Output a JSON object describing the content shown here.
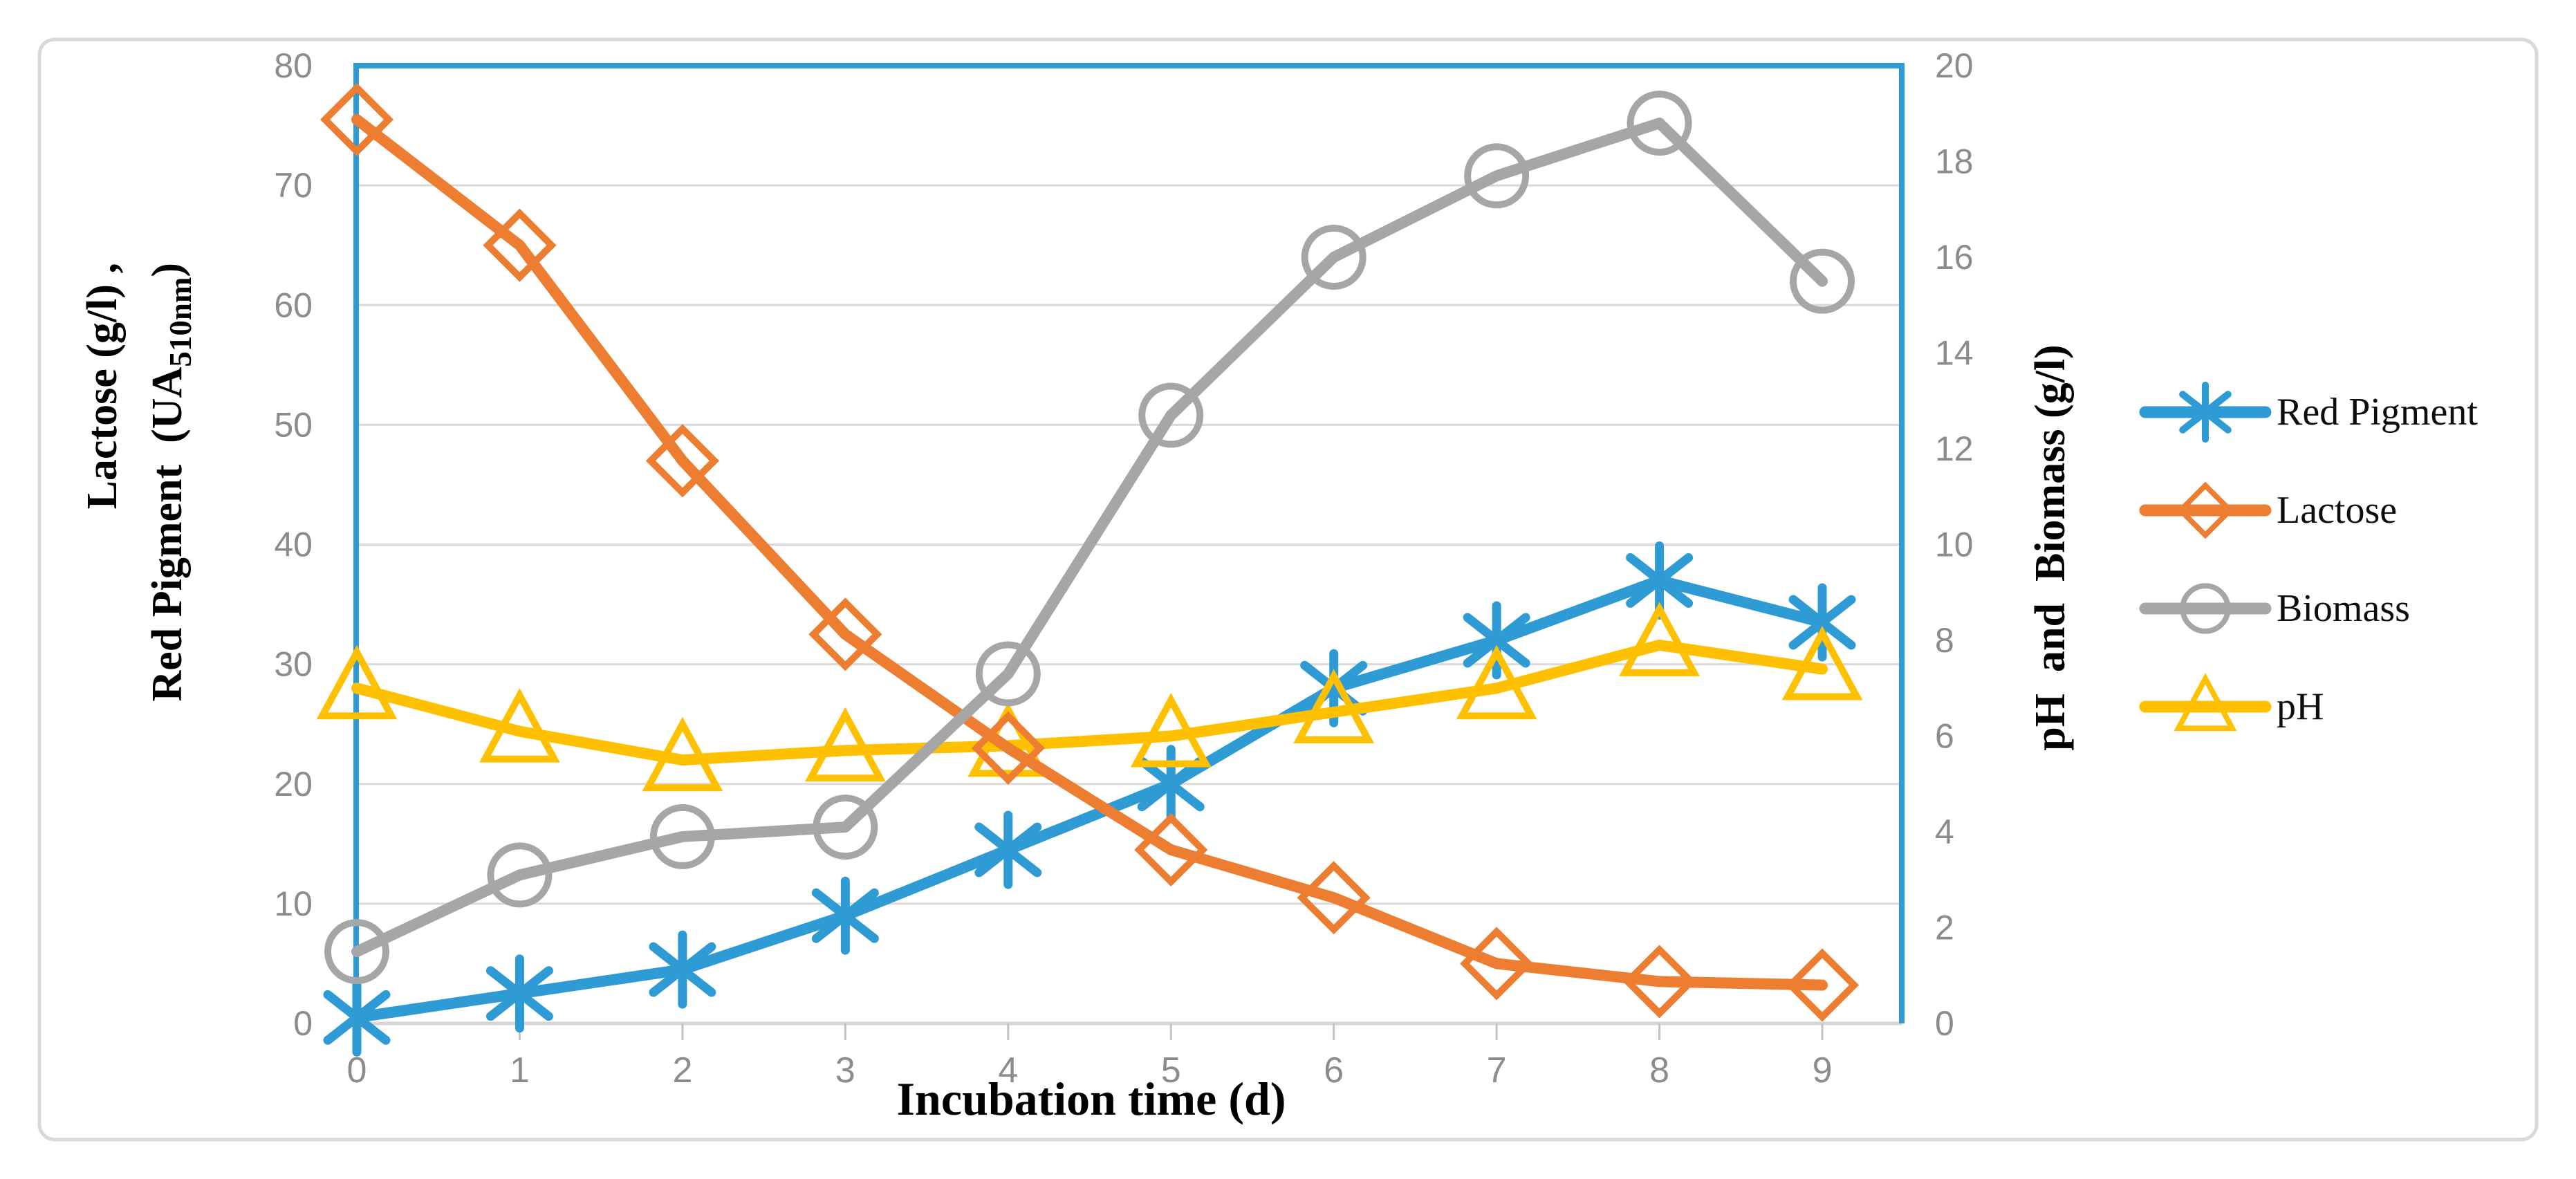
{
  "chart_data": {
    "type": "line",
    "x": [
      0,
      1,
      2,
      3,
      4,
      5,
      6,
      7,
      8,
      9
    ],
    "xlabel": "Incubation time (d)",
    "left_axis": {
      "title_line1": "Lactose (g/l) ,",
      "title_line2_main": "Red Pigment  (UA",
      "title_line2_subscript": "510nm",
      "title_line2_close": ")",
      "min": 0,
      "max": 80,
      "tick_step": 10,
      "ticks": [
        80,
        70,
        60,
        50,
        40,
        30,
        20,
        10,
        0
      ]
    },
    "right_axis": {
      "title": "pH  and  Biomass (g/l)",
      "min": 0,
      "max": 20,
      "tick_step": 2,
      "ticks": [
        20,
        18,
        16,
        14,
        12,
        10,
        8,
        6,
        4,
        2,
        0
      ]
    },
    "grid": true,
    "legend_position": "right",
    "series": [
      {
        "name": "Red Pigment",
        "axis": "left",
        "marker": "star",
        "color": "#2E9BD5",
        "values": [
          0.5,
          2.5,
          4.5,
          9,
          14.5,
          20,
          28,
          32,
          37,
          33.5
        ]
      },
      {
        "name": "Lactose",
        "axis": "left",
        "marker": "diamond",
        "color": "#ED7D31",
        "values": [
          75.5,
          65,
          47,
          32.5,
          23,
          14.5,
          10.5,
          5,
          3.5,
          3.2
        ]
      },
      {
        "name": "Biomass",
        "axis": "right",
        "marker": "circle",
        "color": "#A6A6A6",
        "values": [
          1.5,
          3.1,
          3.9,
          4.1,
          7.3,
          12.7,
          16,
          17.7,
          18.8,
          15.5
        ]
      },
      {
        "name": "pH",
        "axis": "right",
        "marker": "triangle",
        "color": "#FFC000",
        "values": [
          7.0,
          6.1,
          5.5,
          5.7,
          5.8,
          6.0,
          6.5,
          7.0,
          7.9,
          7.4
        ]
      }
    ],
    "colors": {
      "gridline": "#D9D9D9",
      "outer_border": "#D9D9D9",
      "plot_border": "#2E9BD5",
      "bottom_axis": "#D6D6D6",
      "tick_mark": "#C2C2C2",
      "axis_text": "#8C8C8C",
      "title_text": "#000000",
      "legend_text": "#0d0d0d",
      "background": "#ffffff"
    }
  }
}
